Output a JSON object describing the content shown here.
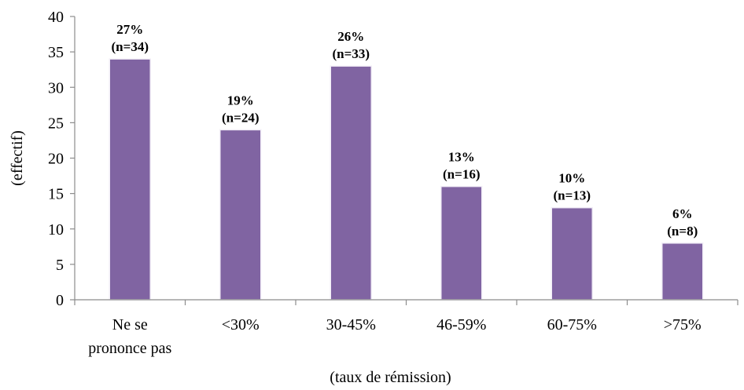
{
  "chart_data": {
    "type": "bar",
    "categories": [
      [
        "Ne se",
        "prononce pas"
      ],
      [
        "<30%"
      ],
      [
        "30-45%"
      ],
      [
        "46-59%"
      ],
      [
        "60-75%"
      ],
      [
        ">75%"
      ]
    ],
    "values": [
      34,
      24,
      33,
      16,
      13,
      8
    ],
    "data_labels": [
      [
        "27%",
        "(n=34)"
      ],
      [
        "19%",
        "(n=24)"
      ],
      [
        "26%",
        "(n=33)"
      ],
      [
        "13%",
        "(n=16)"
      ],
      [
        "10%",
        "(n=13)"
      ],
      [
        "6%",
        "(n=8)"
      ]
    ],
    "yticks": [
      "0",
      "5",
      "10",
      "15",
      "20",
      "25",
      "30",
      "35",
      "40"
    ],
    "ylim": [
      0,
      40
    ],
    "xlabel": "(taux de rémission)",
    "ylabel": "(effectif)",
    "title": "",
    "grid": false,
    "bar_color": "#8064A2"
  }
}
